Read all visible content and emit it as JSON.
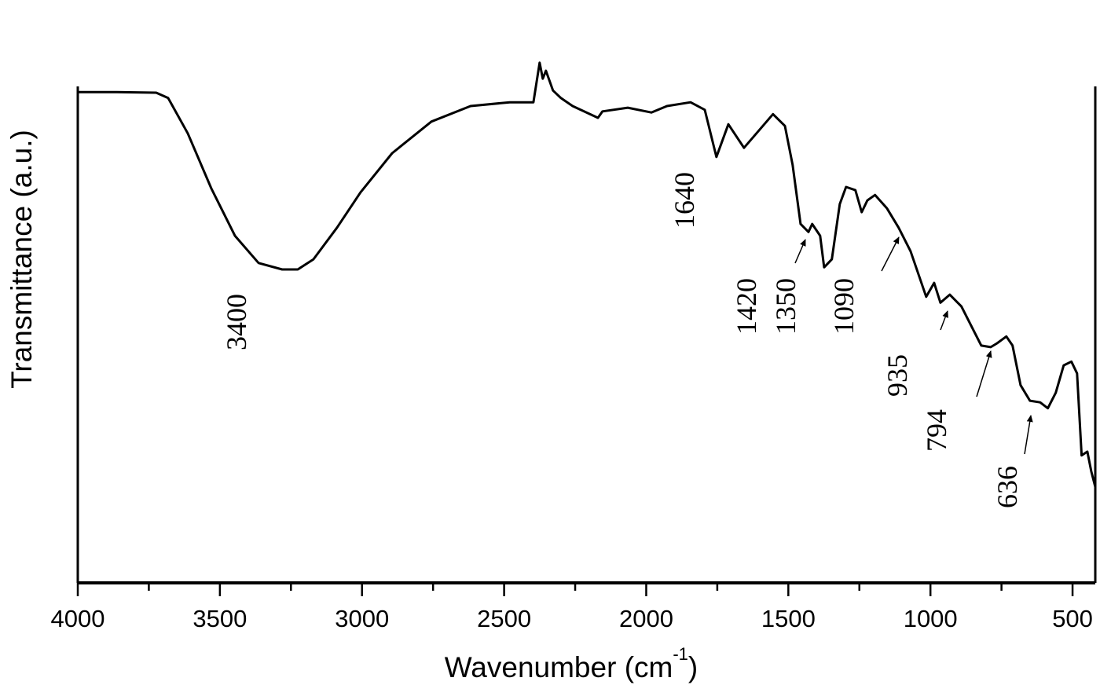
{
  "chart_data": {
    "type": "line",
    "title": "",
    "xlabel": "Wavenumber (cm",
    "xlabel_sup": "-1",
    "xlabel_close": ")",
    "ylabel": "Transmittance (a.u.)",
    "xlim": [
      4000,
      420
    ],
    "ylim": [
      0,
      100
    ],
    "x_reversed": true,
    "y_ticks_shown": false,
    "grid": false,
    "line_color": "#000000",
    "x_ticks": [
      "4000",
      "3500",
      "3000",
      "2500",
      "2000",
      "1500",
      "1000",
      "500"
    ],
    "x_tick_values": [
      4000,
      3500,
      3000,
      2500,
      2000,
      1500,
      1000,
      500
    ],
    "x_minor_tick_values": [
      3750,
      3250,
      2750,
      2250,
      1750,
      1250,
      750
    ],
    "series": [
      {
        "x": [
          4000,
          3862,
          3724,
          3682,
          3613,
          3530,
          3447,
          3364,
          3281,
          3226,
          3171,
          3088,
          3005,
          2894,
          2756,
          2618,
          2480,
          2397,
          2375,
          2364,
          2353,
          2328,
          2300,
          2259,
          2170,
          2154,
          2065,
          1982,
          1927,
          1844,
          1794,
          1753,
          1711,
          1656,
          1554,
          1512,
          1485,
          1457,
          1429,
          1416,
          1388,
          1374,
          1347,
          1319,
          1297,
          1264,
          1242,
          1222,
          1195,
          1153,
          1112,
          1070,
          1015,
          987,
          965,
          932,
          891,
          849,
          821,
          788,
          766,
          733,
          711,
          683,
          650,
          614,
          587,
          559,
          531,
          504,
          484,
          468,
          448,
          434,
          420
        ],
        "y": [
          91.6,
          91.6,
          91.5,
          90.5,
          83.9,
          73.6,
          64.8,
          59.7,
          58.5,
          58.5,
          60.4,
          66.3,
          72.9,
          80.2,
          86.1,
          89.0,
          89.7,
          89.7,
          97.1,
          94.1,
          95.6,
          91.9,
          90.5,
          89.0,
          86.8,
          88.0,
          88.7,
          87.8,
          89.0,
          89.7,
          88.3,
          79.5,
          85.6,
          81.2,
          87.5,
          85.3,
          78.0,
          67.0,
          65.5,
          67.0,
          64.8,
          58.9,
          60.4,
          70.7,
          73.9,
          73.3,
          69.2,
          71.4,
          72.4,
          69.9,
          66.3,
          61.9,
          53.4,
          56.0,
          52.3,
          53.8,
          51.6,
          47.2,
          44.3,
          44.0,
          44.7,
          46.0,
          44.3,
          36.9,
          34.0,
          33.7,
          32.6,
          35.5,
          40.6,
          41.3,
          39.1,
          23.8,
          24.5,
          20.8,
          17.9
        ]
      }
    ],
    "annotations": [
      {
        "text": "3400"
      },
      {
        "text": "1640"
      },
      {
        "text": "1420"
      },
      {
        "text": "1350"
      },
      {
        "text": "1090"
      },
      {
        "text": "935"
      },
      {
        "text": "794"
      },
      {
        "text": "636"
      }
    ]
  }
}
